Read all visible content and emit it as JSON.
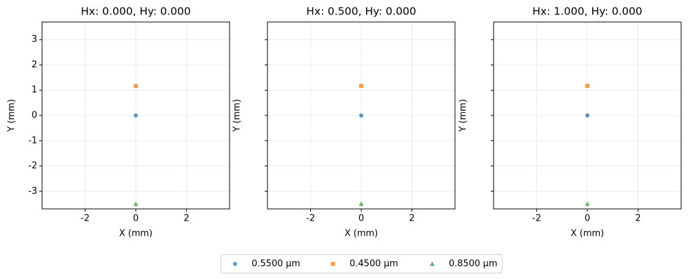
{
  "chart_data": [
    {
      "type": "scatter",
      "title": "Hx: 0.000, Hy: 0.000",
      "x_label": "X (mm)",
      "y_label": "Y (mm)",
      "xlim": [
        -3.7,
        3.7
      ],
      "ylim": [
        -3.7,
        3.7
      ],
      "xticks": [
        -2,
        0,
        2
      ],
      "yticks": [
        -3,
        -2,
        -1,
        0,
        1,
        2,
        3
      ],
      "ytick_labels": true,
      "grid": true,
      "series": [
        {
          "name": "0.5500 µm",
          "color": "#1f77b4",
          "marker": "circle",
          "x": [
            0
          ],
          "values": [
            0
          ]
        },
        {
          "name": "0.4500 µm",
          "color": "#ff7f0e",
          "marker": "square",
          "x": [
            0
          ],
          "values": [
            1.17
          ]
        },
        {
          "name": "0.8500 µm",
          "color": "#2ca02c",
          "marker": "triangle",
          "x": [
            0
          ],
          "values": [
            -3.5
          ]
        }
      ]
    },
    {
      "type": "scatter",
      "title": "Hx: 0.500, Hy: 0.000",
      "x_label": "X (mm)",
      "y_label": "Y (mm)",
      "xlim": [
        -3.7,
        3.7
      ],
      "ylim": [
        -3.7,
        3.7
      ],
      "xticks": [
        -2,
        0,
        2
      ],
      "yticks": [
        -3,
        -2,
        -1,
        0,
        1,
        2,
        3
      ],
      "ytick_labels": false,
      "grid": true,
      "series": [
        {
          "name": "0.5500 µm",
          "color": "#1f77b4",
          "marker": "circle",
          "x": [
            0
          ],
          "values": [
            0
          ]
        },
        {
          "name": "0.4500 µm",
          "color": "#ff7f0e",
          "marker": "square",
          "x": [
            0
          ],
          "values": [
            1.17
          ]
        },
        {
          "name": "0.8500 µm",
          "color": "#2ca02c",
          "marker": "triangle",
          "x": [
            0
          ],
          "values": [
            -3.5
          ]
        }
      ]
    },
    {
      "type": "scatter",
      "title": "Hx: 1.000, Hy: 0.000",
      "x_label": "X (mm)",
      "y_label": "Y (mm)",
      "xlim": [
        -3.7,
        3.7
      ],
      "ylim": [
        -3.7,
        3.7
      ],
      "xticks": [
        -2,
        0,
        2
      ],
      "yticks": [
        -3,
        -2,
        -1,
        0,
        1,
        2,
        3
      ],
      "ytick_labels": false,
      "grid": true,
      "series": [
        {
          "name": "0.5500 µm",
          "color": "#1f77b4",
          "marker": "circle",
          "x": [
            0
          ],
          "values": [
            0
          ]
        },
        {
          "name": "0.4500 µm",
          "color": "#ff7f0e",
          "marker": "square",
          "x": [
            0
          ],
          "values": [
            1.17
          ]
        },
        {
          "name": "0.8500 µm",
          "color": "#2ca02c",
          "marker": "triangle",
          "x": [
            0
          ],
          "values": [
            -3.5
          ]
        }
      ]
    }
  ]
}
